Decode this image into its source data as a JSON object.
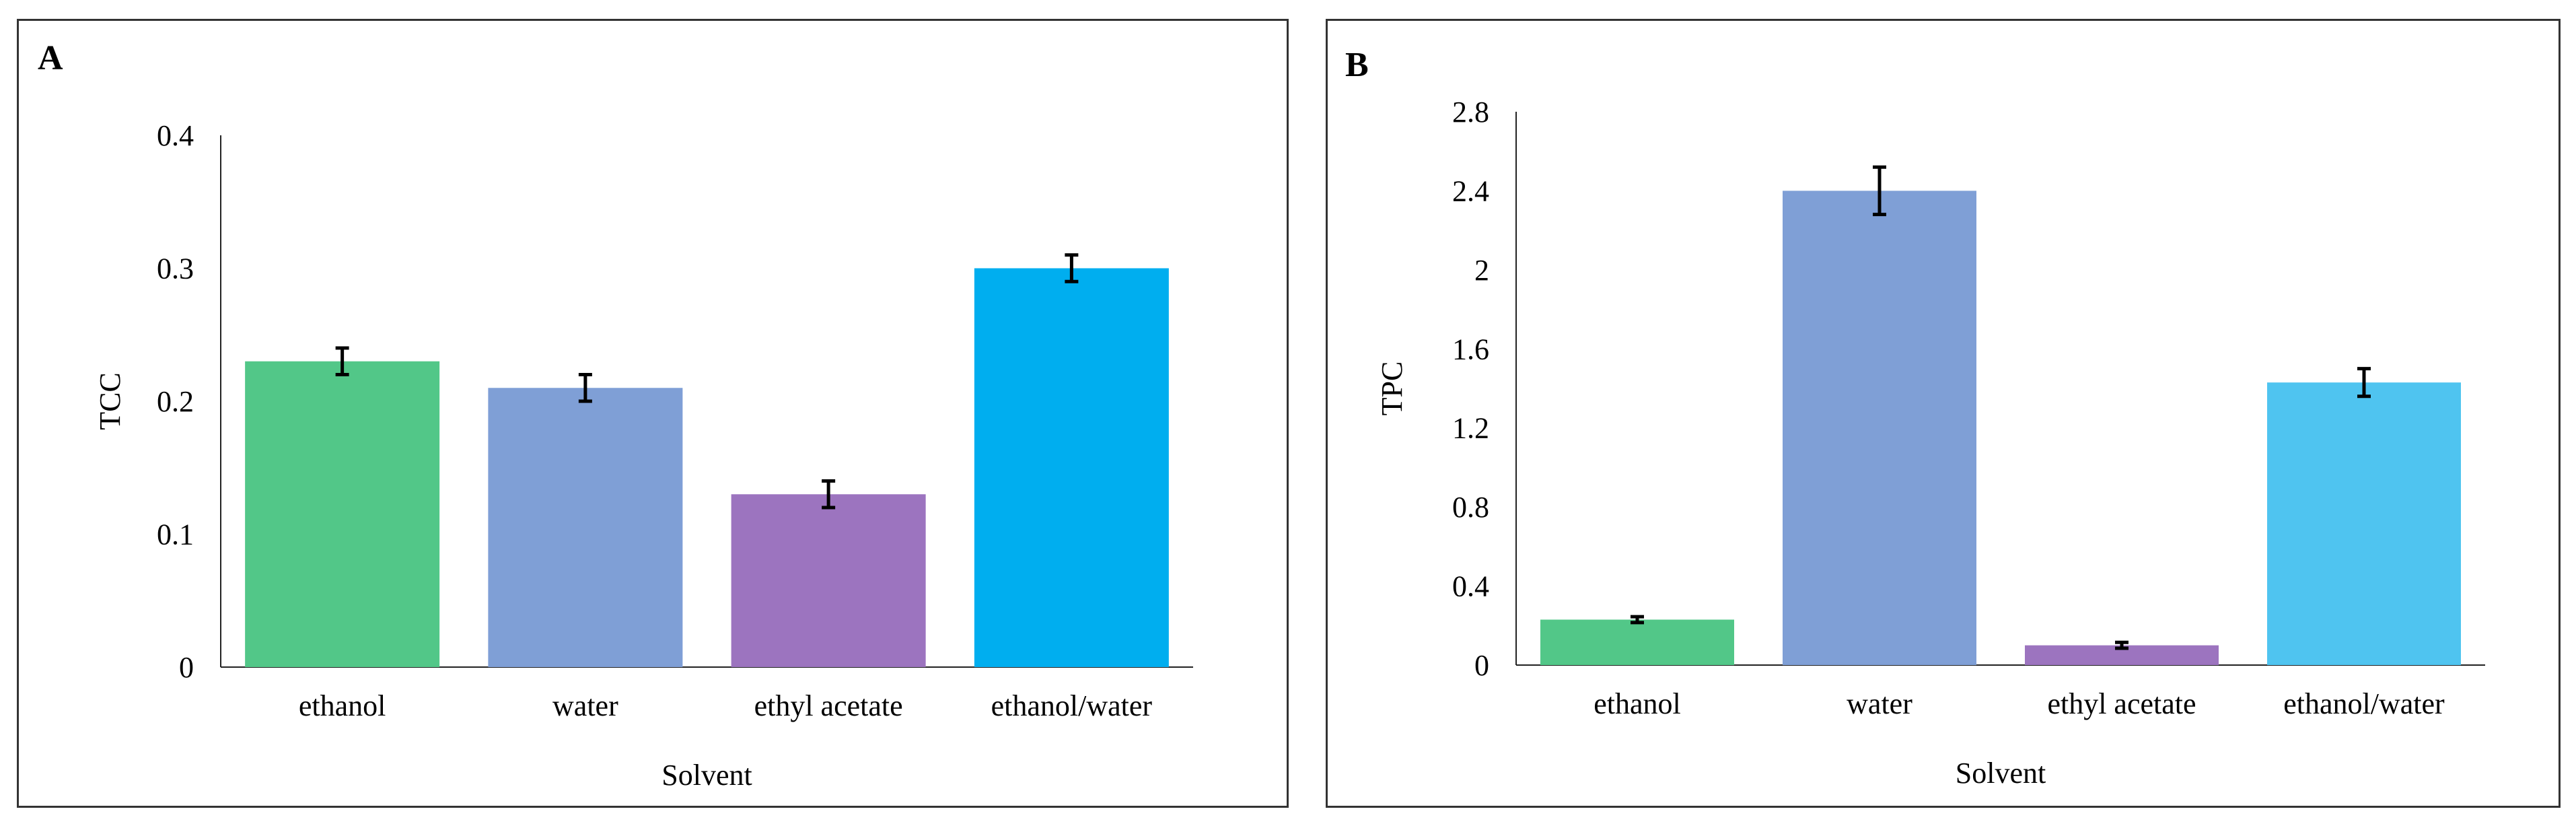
{
  "chart_data": [
    {
      "panel_label": "A",
      "type": "bar",
      "categories": [
        "ethanol",
        "water",
        "ethyl acetate",
        "ethanol/water"
      ],
      "values": [
        0.23,
        0.21,
        0.13,
        0.3
      ],
      "errors": [
        0.01,
        0.01,
        0.01,
        0.01
      ],
      "colors": [
        "#52c788",
        "#7f9fd6",
        "#9c74bf",
        "#00aeef"
      ],
      "title": "",
      "xlabel": "Solvent",
      "ylabel": "TCC",
      "ylim": [
        0,
        0.4
      ],
      "yticks": [
        "0",
        "0.1",
        "0.2",
        "0.3",
        "0.4"
      ],
      "grid": false
    },
    {
      "panel_label": "B",
      "type": "bar",
      "categories": [
        "ethanol",
        "water",
        "ethyl acetate",
        "ethanol/water"
      ],
      "values": [
        0.23,
        2.4,
        0.1,
        1.43
      ],
      "errors": [
        0.015,
        0.12,
        0.015,
        0.07
      ],
      "colors": [
        "#52c788",
        "#7f9fd6",
        "#9c74bf",
        "#4fc4f0"
      ],
      "title": "",
      "xlabel": "Solvent",
      "ylabel": "TPC",
      "ylim": [
        0,
        2.8
      ],
      "yticks": [
        "0",
        "0.4",
        "0.8",
        "1.2",
        "1.6",
        "2",
        "2.4",
        "2.8"
      ],
      "grid": false
    }
  ]
}
